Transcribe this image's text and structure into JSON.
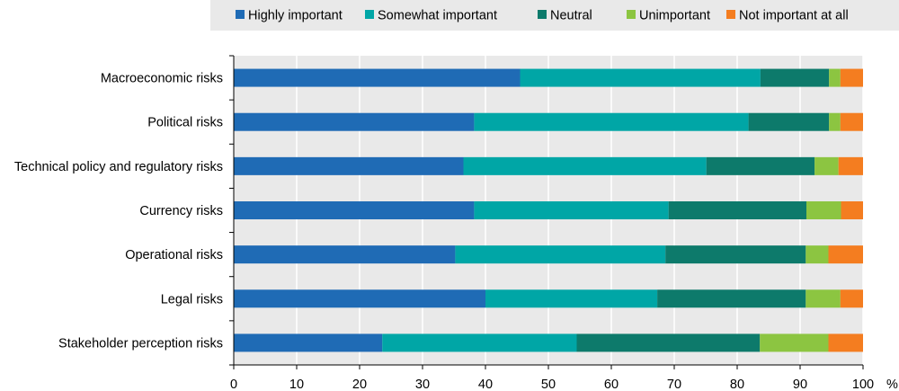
{
  "chart_data": {
    "type": "bar",
    "orientation": "horizontal",
    "stacked": true,
    "categories": [
      "Macroeconomic risks",
      "Political risks",
      "Technical policy and regulatory risks",
      "Currency risks",
      "Operational risks",
      "Legal risks",
      "Stakeholder perception risks"
    ],
    "series": [
      {
        "name": "Highly important",
        "color": "#1f6bb5",
        "values": [
          45.5,
          38.2,
          36.5,
          38.2,
          35.2,
          40.0,
          23.6
        ]
      },
      {
        "name": "Somewhat important",
        "color": "#00a6a6",
        "values": [
          38.2,
          43.6,
          38.6,
          30.9,
          33.4,
          27.3,
          30.9
        ]
      },
      {
        "name": "Neutral",
        "color": "#0d7a6b",
        "values": [
          10.9,
          12.8,
          17.2,
          21.9,
          22.3,
          23.6,
          29.1
        ]
      },
      {
        "name": "Unimportant",
        "color": "#8cc541",
        "values": [
          1.8,
          1.8,
          3.8,
          5.5,
          3.6,
          5.5,
          10.9
        ]
      },
      {
        "name": "Not important at all",
        "color": "#f47d20",
        "values": [
          3.6,
          3.6,
          3.9,
          3.5,
          5.5,
          3.6,
          5.5
        ]
      }
    ],
    "xlim": [
      0,
      100
    ],
    "xticks": [
      "0",
      "10",
      "20",
      "30",
      "40",
      "50",
      "60",
      "70",
      "80",
      "90",
      "100"
    ],
    "unit": "%",
    "grid": true,
    "legend_position": "top"
  }
}
